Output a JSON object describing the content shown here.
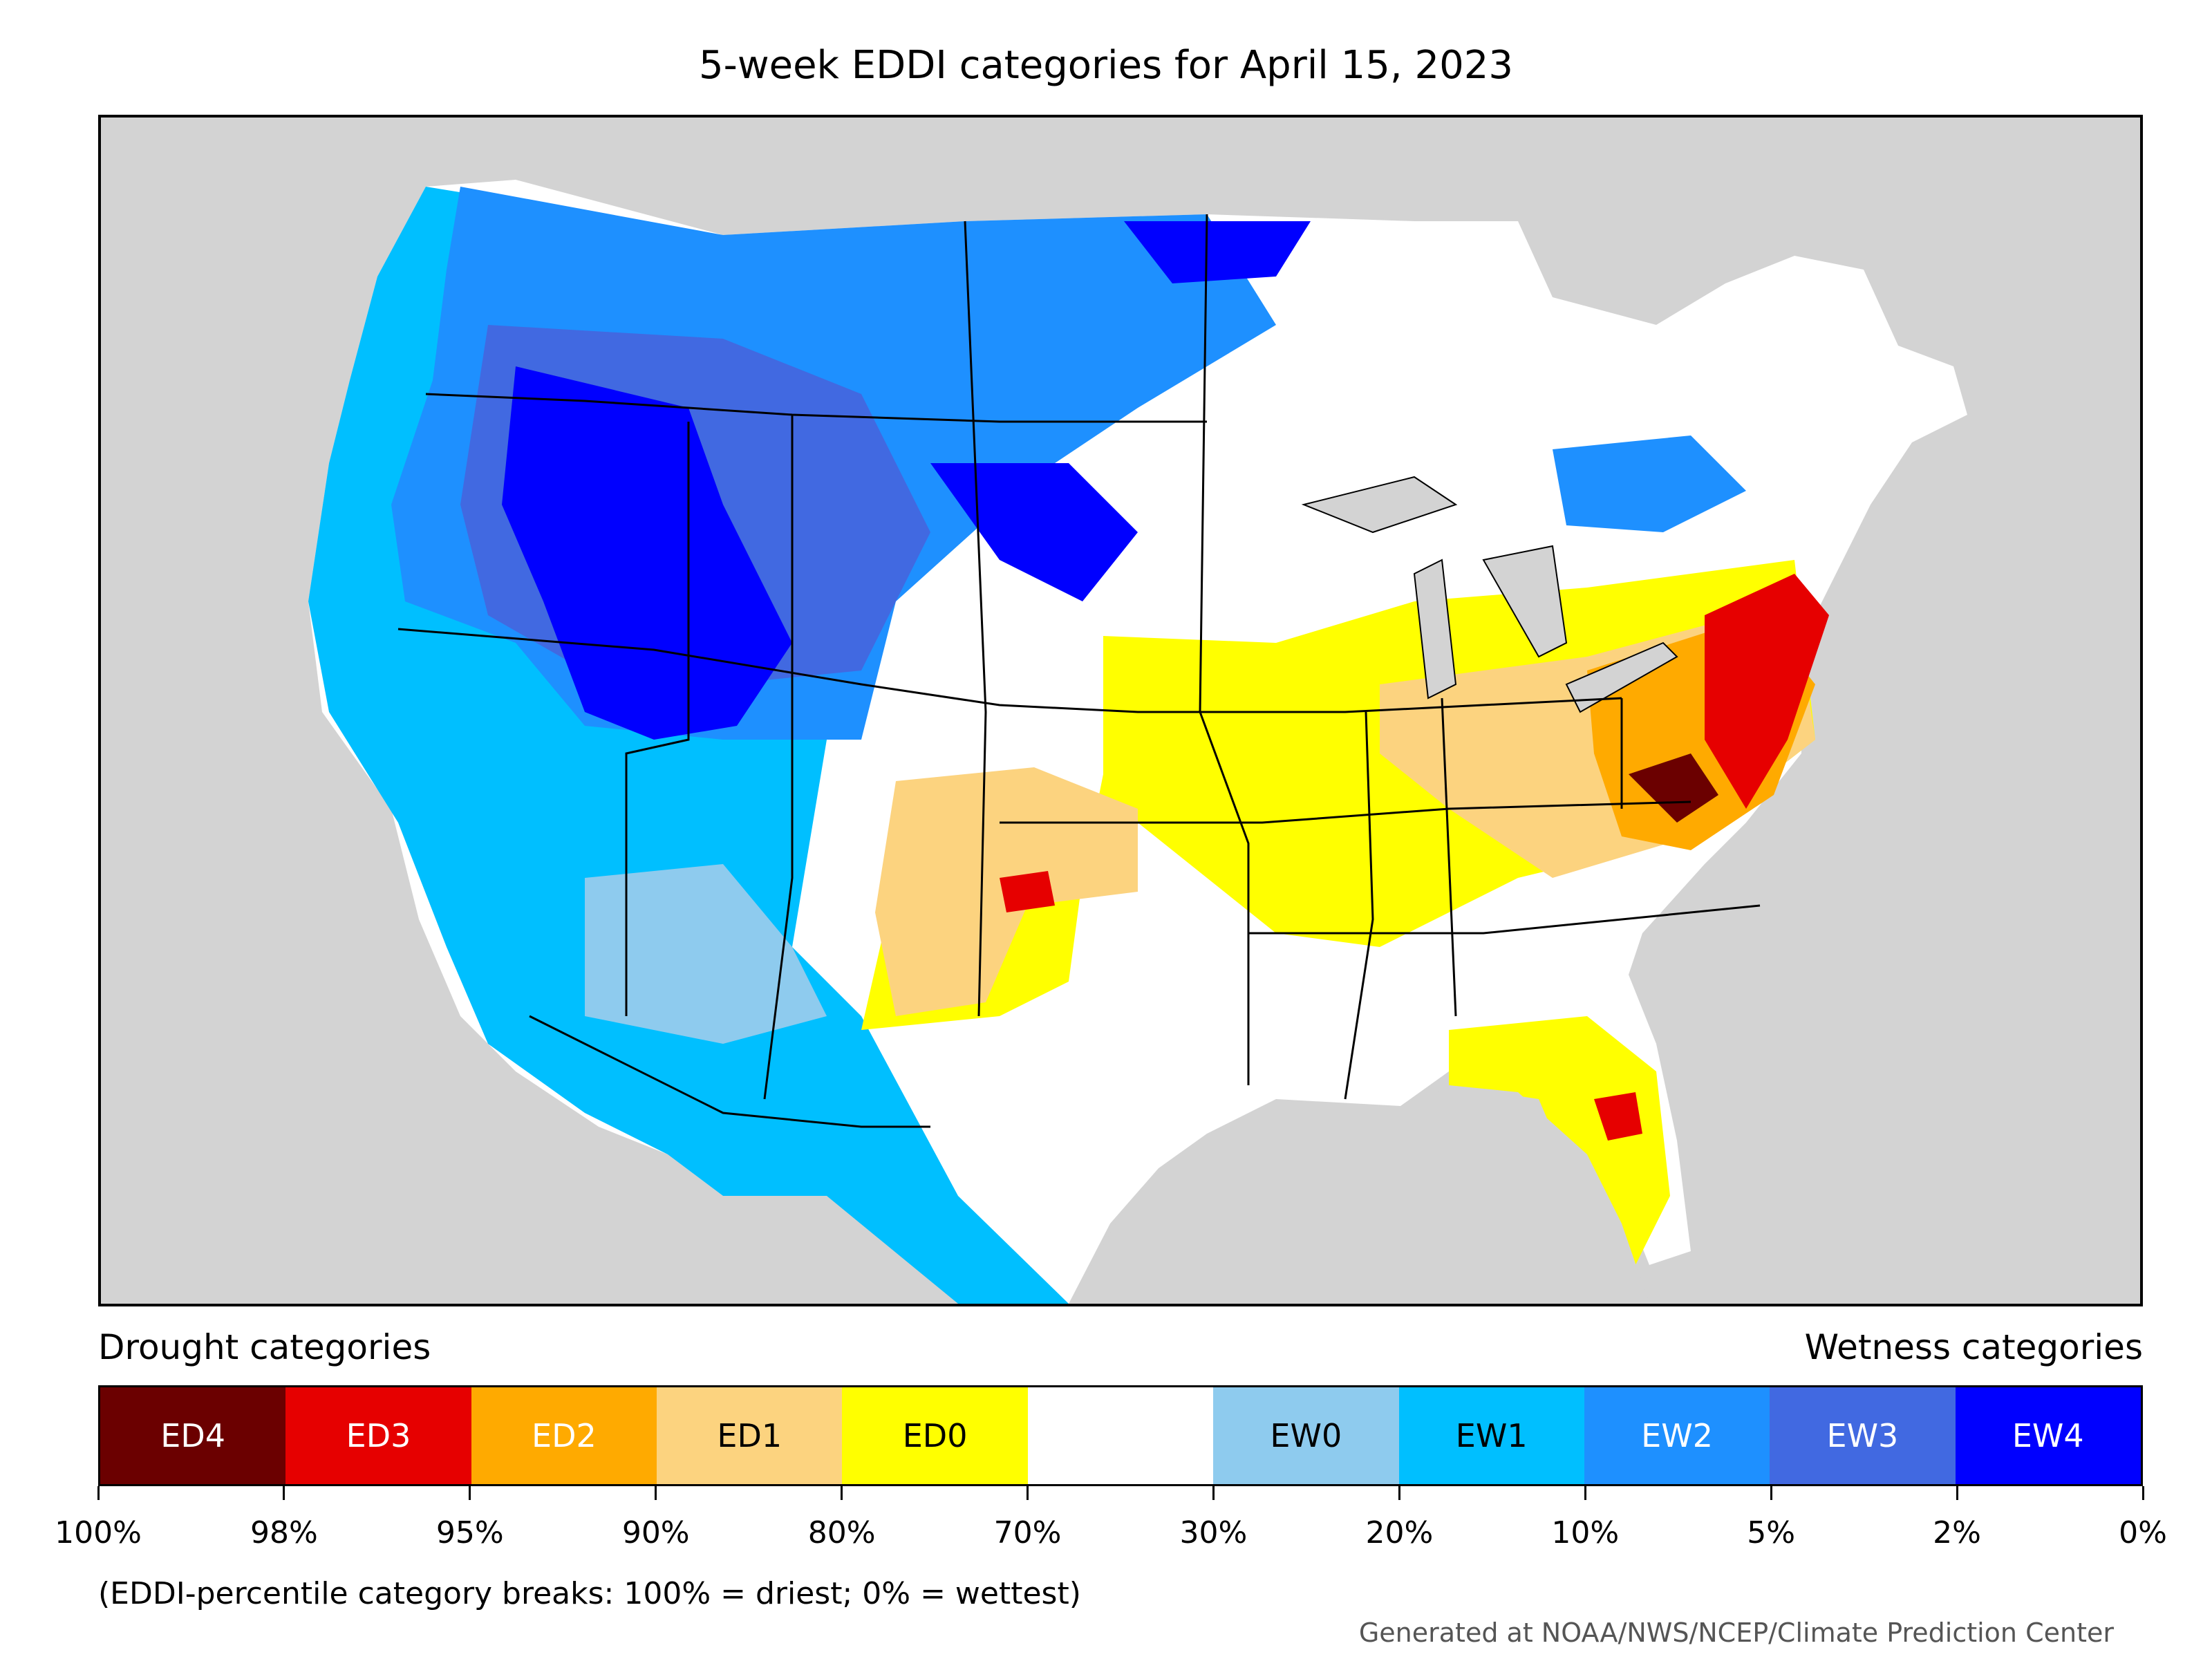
{
  "title": "5-week EDDI categories for April 15, 2023",
  "legend": {
    "drought_label": "Drought categories",
    "wetness_label": "Wetness categories",
    "categories": [
      {
        "name": "ED4",
        "color": "#6b0000",
        "text_color": "#ffffff"
      },
      {
        "name": "ED3",
        "color": "#e60000",
        "text_color": "#ffffff"
      },
      {
        "name": "ED2",
        "color": "#ffaa00",
        "text_color": "#ffffff"
      },
      {
        "name": "ED1",
        "color": "#fcd37f",
        "text_color": "#000000"
      },
      {
        "name": "ED0",
        "color": "#ffff00",
        "text_color": "#000000"
      },
      {
        "name": "",
        "color": "#ffffff",
        "text_color": "#000000"
      },
      {
        "name": "EW0",
        "color": "#8ecbee",
        "text_color": "#000000"
      },
      {
        "name": "EW1",
        "color": "#00bfff",
        "text_color": "#000000"
      },
      {
        "name": "EW2",
        "color": "#1e90ff",
        "text_color": "#ffffff"
      },
      {
        "name": "EW3",
        "color": "#4169e1",
        "text_color": "#ffffff"
      },
      {
        "name": "EW4",
        "color": "#0000ff",
        "text_color": "#ffffff"
      }
    ],
    "breaks": [
      "100%",
      "98%",
      "95%",
      "90%",
      "80%",
      "70%",
      "30%",
      "20%",
      "10%",
      "5%",
      "2%",
      "0%"
    ]
  },
  "note": "(EDDI-percentile category breaks: 100% = driest; 0% = wettest)",
  "credit": "Generated at NOAA/NWS/NCEP/Climate Prediction Center",
  "colors": {
    "background_land": "#d3d3d3",
    "lines": "#000000"
  }
}
